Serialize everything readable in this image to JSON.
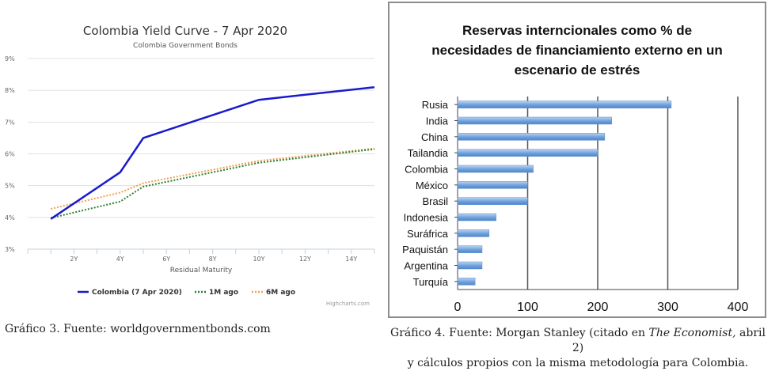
{
  "chart_data": [
    {
      "type": "line",
      "title": "Colombia Yield Curve - 7 Apr 2020",
      "subtitle": "Colombia Government Bonds",
      "xlabel": "Residual Maturity",
      "ylabel": "",
      "ylim": [
        3,
        9
      ],
      "xlim": [
        0,
        15
      ],
      "y_ticks": [
        "3%",
        "4%",
        "5%",
        "6%",
        "7%",
        "8%",
        "9%"
      ],
      "x_ticks": [
        "2Y",
        "4Y",
        "6Y",
        "8Y",
        "10Y",
        "12Y",
        "14Y"
      ],
      "grid": true,
      "legend_position": "bottom-center",
      "series": [
        {
          "name": "Colombia (7 Apr 2020)",
          "color": "#1a1acc",
          "style": "solid",
          "x": [
            1,
            4,
            5,
            10,
            15
          ],
          "values": [
            3.95,
            5.42,
            6.5,
            7.7,
            8.1
          ]
        },
        {
          "name": "1M ago",
          "color": "#2e7d32",
          "style": "dotted",
          "x": [
            1,
            4,
            5,
            10,
            15
          ],
          "values": [
            3.98,
            4.5,
            4.97,
            5.72,
            6.15
          ]
        },
        {
          "name": "6M ago",
          "color": "#f0a050",
          "style": "dotted",
          "x": [
            1,
            4,
            5,
            10,
            15
          ],
          "values": [
            4.27,
            4.78,
            5.08,
            5.78,
            6.17
          ]
        }
      ],
      "credit": "Highcharts.com"
    },
    {
      "type": "bar",
      "orientation": "horizontal",
      "title_lines": [
        "Reservas interncionales como % de",
        "necesidades de financiamiento externo en un",
        "escenario de estrés"
      ],
      "categories": [
        "Rusia",
        "India",
        "China",
        "Tailandia",
        "Colombia",
        "México",
        "Brasil",
        "Indonesia",
        "Suráfrica",
        "Paquistán",
        "Argentina",
        "Turquía"
      ],
      "values": [
        305,
        220,
        210,
        200,
        108,
        100,
        100,
        55,
        45,
        35,
        35,
        25
      ],
      "xlim": [
        0,
        400
      ],
      "x_ticks": [
        "0",
        "100",
        "200",
        "300",
        "400"
      ],
      "grid": true,
      "bar_color": "#6fa0dc"
    }
  ],
  "captions": {
    "left": "Gráfico 3. Fuente: worldgovernmentbonds.com",
    "right_part1": "Gráfico 4. Fuente: Morgan Stanley (citado en ",
    "right_italic": "The Economist,",
    "right_part2": " abril 2)",
    "right_line2": "y cálculos propios con la misma metodología para Colombia."
  }
}
